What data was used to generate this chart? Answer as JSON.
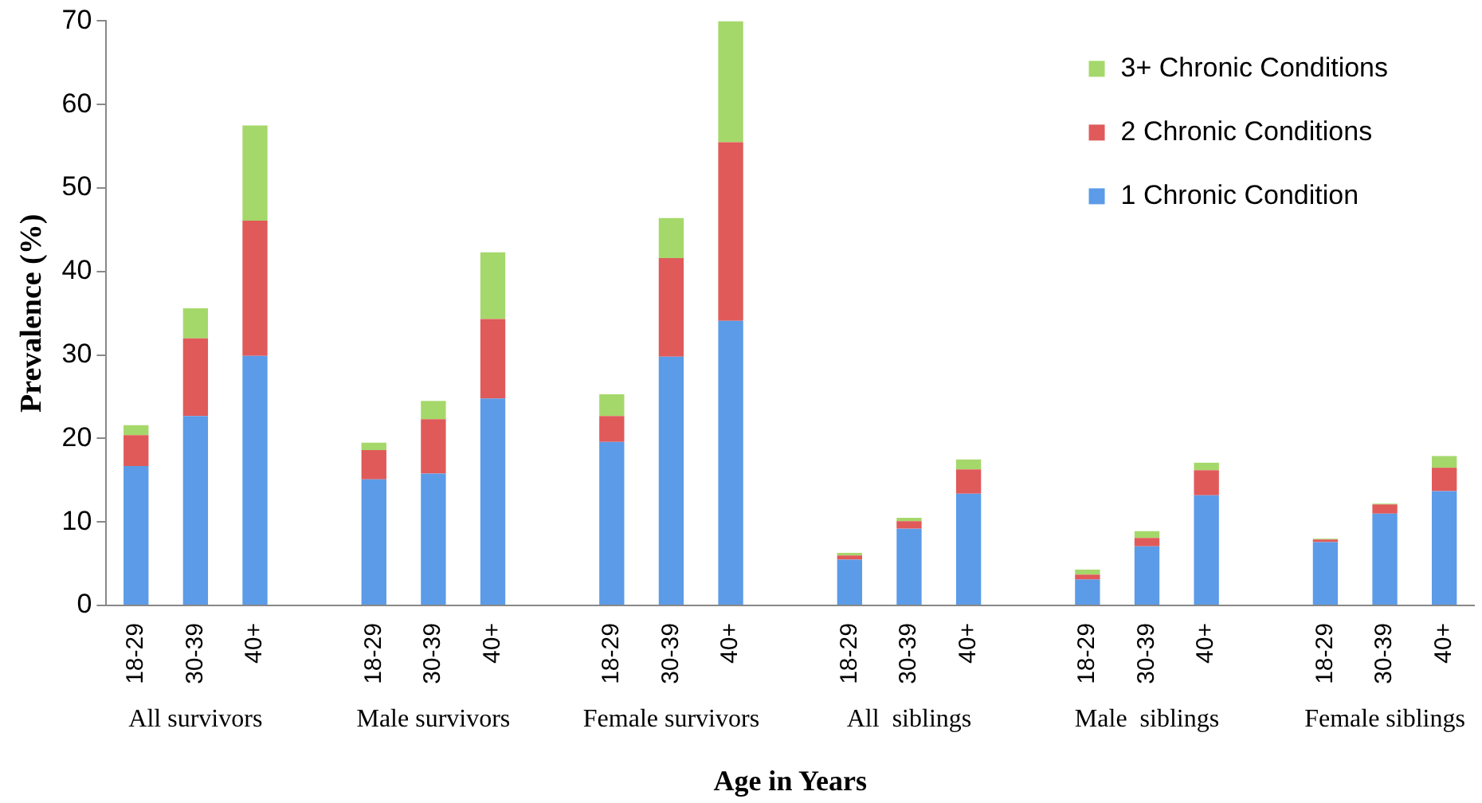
{
  "chart_data": {
    "type": "bar",
    "stacked": true,
    "ylabel": "Prevalence (%)",
    "xlabel": "Age in Years",
    "categories": [
      "18-29",
      "30-39",
      "40+",
      null,
      "18-29",
      "30-39",
      "40+",
      null,
      "18-29",
      "30-39",
      "40+",
      null,
      "18-29",
      "30-39",
      "40+",
      null,
      "18-29",
      "30-39",
      "40+",
      null,
      "18-29",
      "30-39",
      "40+"
    ],
    "series": [
      {
        "name": "1 Chronic Condition",
        "color": "#5b9be8",
        "values": [
          16.7,
          22.7,
          29.9,
          null,
          15.1,
          15.8,
          24.8,
          null,
          19.6,
          29.8,
          34.1,
          null,
          5.5,
          9.2,
          13.4,
          null,
          3.1,
          7.1,
          13.2,
          null,
          7.6,
          11.0,
          13.7
        ]
      },
      {
        "name": "2 Chronic Conditions",
        "color": "#e05a5a",
        "values": [
          3.7,
          9.3,
          16.2,
          null,
          3.5,
          6.5,
          9.5,
          null,
          3.1,
          11.8,
          21.4,
          null,
          0.5,
          0.9,
          2.9,
          null,
          0.6,
          1.0,
          3.0,
          null,
          0.3,
          1.1,
          2.8
        ]
      },
      {
        "name": "3+ Chronic Conditions",
        "color": "#a5d86a",
        "values": [
          1.2,
          3.6,
          11.4,
          null,
          0.9,
          2.2,
          8.0,
          null,
          2.6,
          4.8,
          14.5,
          null,
          0.3,
          0.4,
          1.2,
          null,
          0.6,
          0.8,
          0.9,
          null,
          0.1,
          0.1,
          1.4
        ]
      }
    ],
    "ylim": [
      0,
      70
    ],
    "yticks": [
      0,
      10,
      20,
      30,
      40,
      50,
      60,
      70
    ],
    "grid": false,
    "legend": "top right",
    "annotations": [
      "All survivors",
      "Male survivors",
      "Female survivors",
      "All  siblings",
      "Male  siblings",
      "Female siblings"
    ]
  }
}
